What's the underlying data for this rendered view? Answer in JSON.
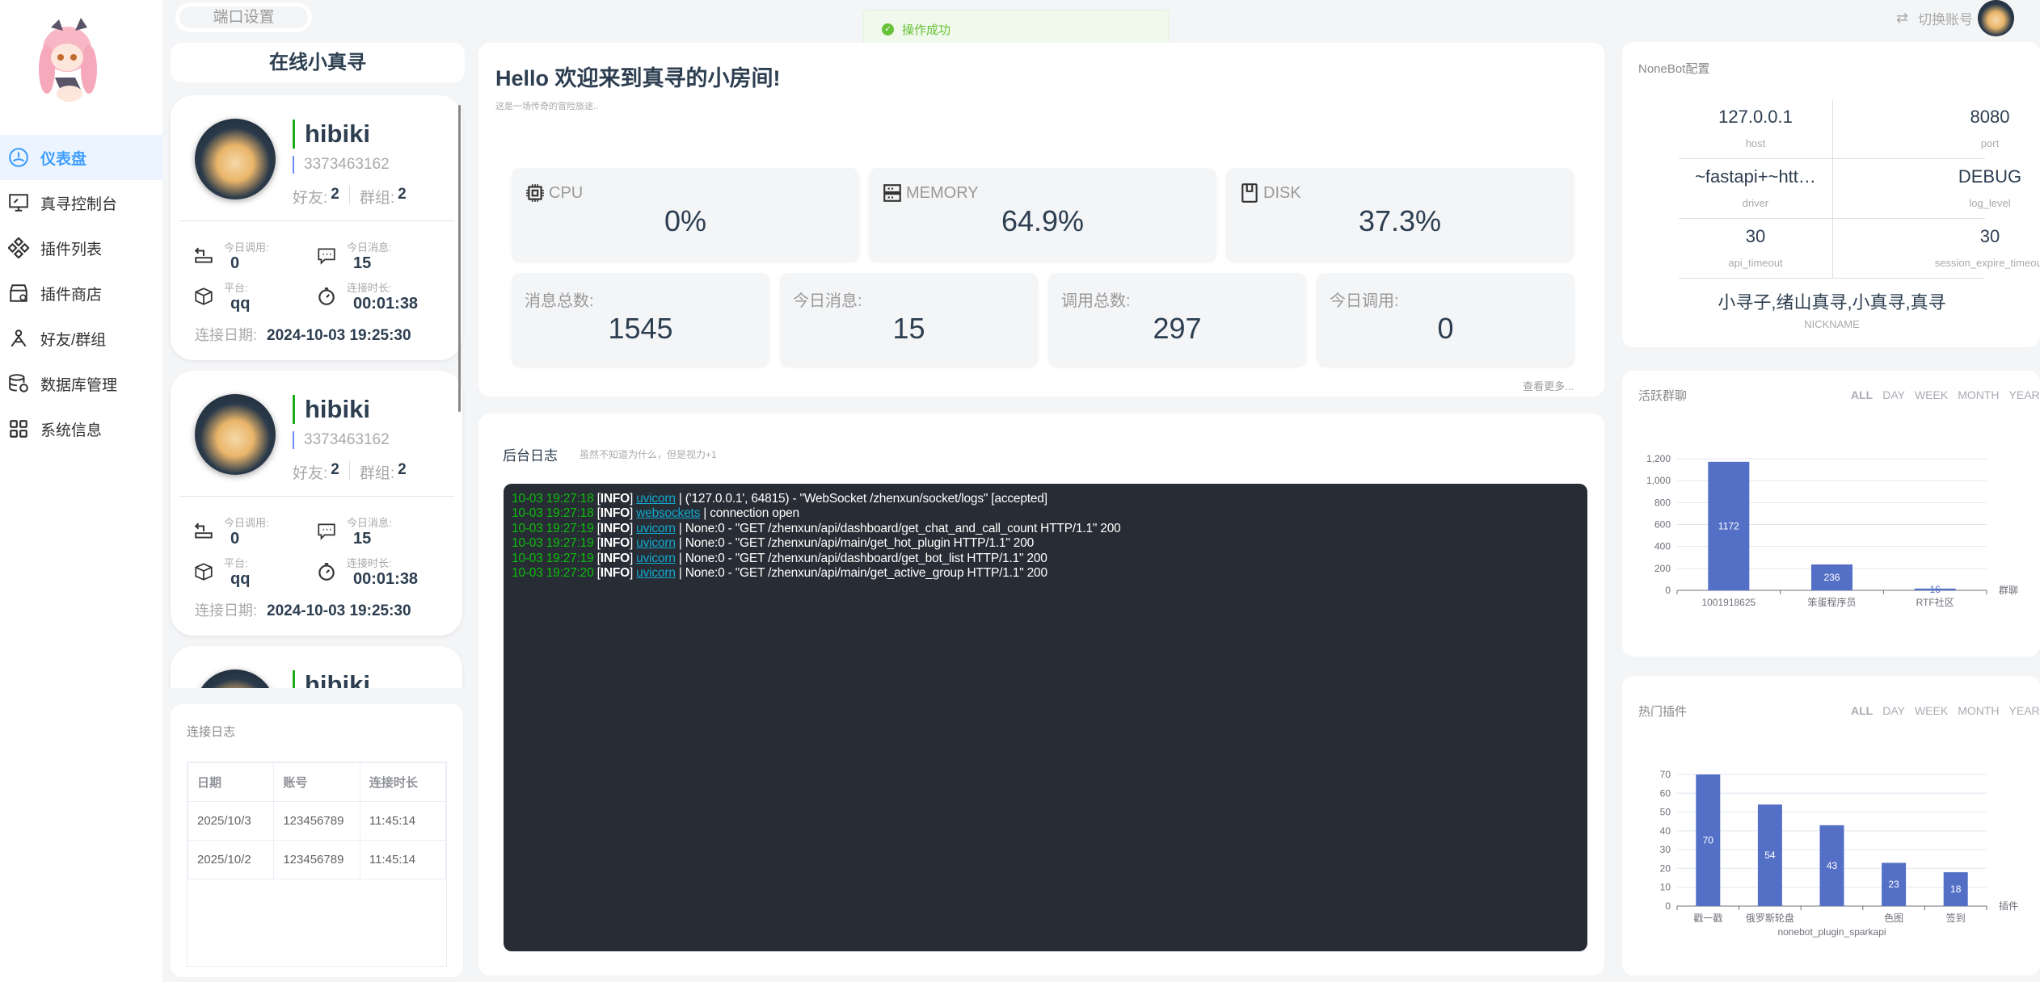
{
  "sidebar": {
    "items": [
      {
        "label": "仪表盘",
        "icon": "dashboard-icon",
        "active": true
      },
      {
        "label": "真寻控制台",
        "icon": "monitor-icon"
      },
      {
        "label": "插件列表",
        "icon": "plugins-icon"
      },
      {
        "label": "插件商店",
        "icon": "store-icon"
      },
      {
        "label": "好友/群组",
        "icon": "people-icon"
      },
      {
        "label": "数据库管理",
        "icon": "database-icon"
      },
      {
        "label": "系统信息",
        "icon": "grid-icon"
      }
    ]
  },
  "topbar": {
    "port_button": "端口设置",
    "switch_account": "切换账号",
    "toast": "操作成功"
  },
  "online": {
    "title": "在线小真寻",
    "bots": [
      {
        "name": "hibiki",
        "id": "3373463162",
        "friends_label": "好友:",
        "friends": "2",
        "groups_label": "群组:",
        "groups": "2",
        "call_label": "今日调用:",
        "call": "0",
        "msg_label": "今日消息:",
        "msg": "15",
        "platform_label": "平台:",
        "platform": "qq",
        "duration_label": "连接时长:",
        "duration": "00:01:38",
        "date_label": "连接日期:",
        "date": "2024-10-03 19:25:30"
      },
      {
        "name": "hibiki",
        "id": "3373463162",
        "friends_label": "好友:",
        "friends": "2",
        "groups_label": "群组:",
        "groups": "2",
        "call_label": "今日调用:",
        "call": "0",
        "msg_label": "今日消息:",
        "msg": "15",
        "platform_label": "平台:",
        "platform": "qq",
        "duration_label": "连接时长:",
        "duration": "00:01:38",
        "date_label": "连接日期:",
        "date": "2024-10-03 19:25:30"
      },
      {
        "name": "hibiki"
      }
    ]
  },
  "conn_log": {
    "title": "连接日志",
    "headers": [
      "日期",
      "账号",
      "连接时长"
    ],
    "rows": [
      [
        "2025/10/3",
        "123456789",
        "11:45:14"
      ],
      [
        "2025/10/2",
        "123456789",
        "11:45:14"
      ]
    ]
  },
  "welcome": {
    "title": "Hello 欢迎来到真寻的小房间!",
    "subtitle": "这是一场传奇的冒险旅途..",
    "more": "查看更多...",
    "system": [
      {
        "label": "CPU",
        "value": "0%",
        "icon": "cpu-icon"
      },
      {
        "label": "MEMORY",
        "value": "64.9%",
        "icon": "memory-icon"
      },
      {
        "label": "DISK",
        "value": "37.3%",
        "icon": "disk-icon"
      }
    ],
    "counts": [
      {
        "label": "消息总数:",
        "value": "1545"
      },
      {
        "label": "今日消息:",
        "value": "15"
      },
      {
        "label": "调用总数:",
        "value": "297"
      },
      {
        "label": "今日调用:",
        "value": "0"
      }
    ]
  },
  "logs": {
    "title": "后台日志",
    "subtitle": "虽然不知道为什么，但是视力+1",
    "lines": [
      {
        "time": "10-03 19:27:18",
        "level": "INFO",
        "source": "uvicorn",
        "message": " | ('127.0.0.1', 64815) - \"WebSocket /zhenxun/socket/logs\" [accepted]"
      },
      {
        "time": "10-03 19:27:18",
        "level": "INFO",
        "source": "websockets",
        "message": " | connection open"
      },
      {
        "time": "10-03 19:27:19",
        "level": "INFO",
        "source": "uvicorn",
        "message": " | None:0 - \"GET /zhenxun/api/dashboard/get_chat_and_call_count HTTP/1.1\" 200"
      },
      {
        "time": "10-03 19:27:19",
        "level": "INFO",
        "source": "uvicorn",
        "message": " | None:0 - \"GET /zhenxun/api/main/get_hot_plugin HTTP/1.1\" 200"
      },
      {
        "time": "10-03 19:27:19",
        "level": "INFO",
        "source": "uvicorn",
        "message": " | None:0 - \"GET /zhenxun/api/dashboard/get_bot_list HTTP/1.1\" 200"
      },
      {
        "time": "10-03 19:27:20",
        "level": "INFO",
        "source": "uvicorn",
        "message": " | None:0 - \"GET /zhenxun/api/main/get_active_group HTTP/1.1\" 200"
      }
    ]
  },
  "nonebot": {
    "title": "NoneBot配置",
    "items": [
      {
        "value": "127.0.0.1",
        "key": "host"
      },
      {
        "value": "8080",
        "key": "port"
      },
      {
        "value": "~fastapi+~htt…",
        "key": "driver"
      },
      {
        "value": "DEBUG",
        "key": "log_level"
      },
      {
        "value": "30",
        "key": "api_timeout"
      },
      {
        "value": "30",
        "key": "session_expire_timeout"
      }
    ],
    "nickname": "小寻子,绪山真寻,小真寻,真寻",
    "nickname_label": "NICKNAME"
  },
  "periods": [
    "ALL",
    "DAY",
    "WEEK",
    "MONTH",
    "YEAR"
  ],
  "chart_data": [
    {
      "type": "bar",
      "title": "活跃群聊",
      "categories": [
        "1001918625",
        "笨蛋程序员",
        "RTF社区"
      ],
      "values": [
        1172,
        236,
        16
      ],
      "xlabel": "群聊",
      "ylabel": "",
      "ylim": [
        0,
        1200
      ],
      "yticks": [
        "0",
        "200",
        "400",
        "600",
        "800",
        "1,000",
        "1,200"
      ],
      "grid": true,
      "color": "#5470c6"
    },
    {
      "type": "bar",
      "title": "热门插件",
      "categories": [
        "戳一戳",
        "俄罗斯轮盘",
        "nonebot_plugin_sparkapi",
        "色图",
        "签到"
      ],
      "values": [
        70,
        54,
        43,
        23,
        18
      ],
      "xlabel": "插件",
      "ylabel": "",
      "ylim": [
        0,
        70
      ],
      "yticks": [
        "0",
        "10",
        "20",
        "30",
        "40",
        "50",
        "60",
        "70"
      ],
      "grid": true,
      "color": "#5470c6"
    }
  ],
  "colors": {
    "accent": "#409eff",
    "bar": "#5470c6",
    "success": "#67c23a",
    "terminal": "#282c34"
  }
}
